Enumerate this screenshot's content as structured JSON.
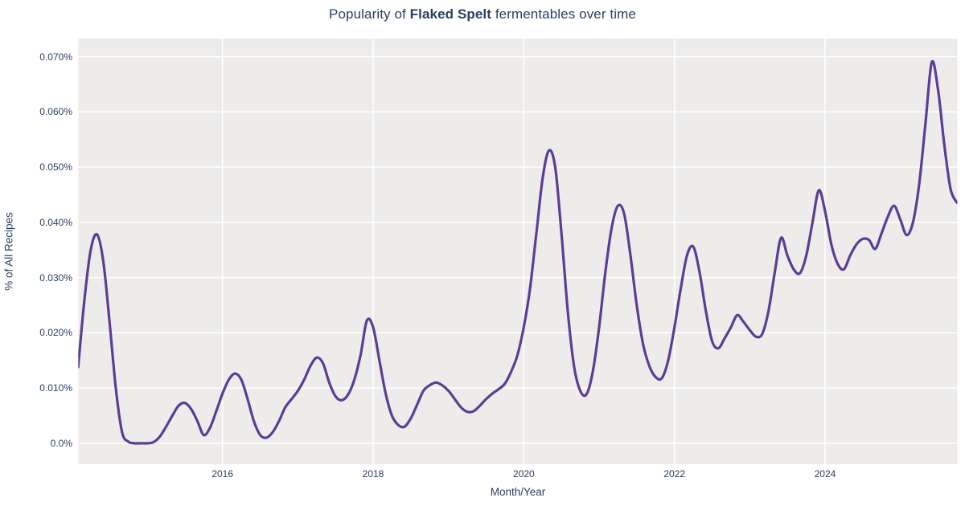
{
  "title": {
    "prefix": "Popularity of ",
    "highlight": "Flaked Spelt",
    "suffix": " fermentables over time"
  },
  "axes": {
    "y_title": "% of All Recipes",
    "x_title": "Month/Year",
    "y_ticks": [
      {
        "label": "0.0%",
        "value": 0.0
      },
      {
        "label": "0.010%",
        "value": 0.01
      },
      {
        "label": "0.020%",
        "value": 0.02
      },
      {
        "label": "0.030%",
        "value": 0.03
      },
      {
        "label": "0.040%",
        "value": 0.04
      },
      {
        "label": "0.050%",
        "value": 0.05
      },
      {
        "label": "0.060%",
        "value": 0.06
      },
      {
        "label": "0.070%",
        "value": 0.07
      }
    ],
    "x_ticks": [
      {
        "label": "2016",
        "year": 2016
      },
      {
        "label": "2018",
        "year": 2018
      },
      {
        "label": "2020",
        "year": 2020
      },
      {
        "label": "2022",
        "year": 2022
      },
      {
        "label": "2024",
        "year": 2024
      }
    ]
  },
  "colors": {
    "line": "#5b3e94",
    "plot_background": "#eeeceb",
    "gridline": "#ffffff",
    "text": "#2a3f5f",
    "page_background": "#ffffff"
  },
  "chart_data": {
    "type": "line",
    "title": "Popularity of Flaked Spelt fermentables over time",
    "xlabel": "Month/Year",
    "ylabel": "% of All Recipes",
    "line_shape": "spline",
    "grid": true,
    "legend_visible": false,
    "y_axis_range_pct": [
      -0.0037,
      0.0733
    ],
    "x_axis_range": [
      "2014-01",
      "2025-10"
    ],
    "y_tick_values_pct": [
      0.0,
      0.01,
      0.02,
      0.03,
      0.04,
      0.05,
      0.06,
      0.07
    ],
    "x_tick_years": [
      2016,
      2018,
      2020,
      2022,
      2024
    ],
    "series": [
      {
        "name": "Flaked Spelt",
        "unit": "% of all recipes",
        "x": [
          "2014-02",
          "2014-03",
          "2014-04",
          "2014-05",
          "2014-06",
          "2014-07",
          "2014-08",
          "2014-09",
          "2014-10",
          "2014-11",
          "2014-12",
          "2015-01",
          "2015-02",
          "2015-03",
          "2015-04",
          "2015-05",
          "2015-06",
          "2015-07",
          "2015-08",
          "2015-09",
          "2015-10",
          "2015-11",
          "2015-12",
          "2016-01",
          "2016-02",
          "2016-03",
          "2016-04",
          "2016-05",
          "2016-06",
          "2016-07",
          "2016-08",
          "2016-09",
          "2016-10",
          "2016-11",
          "2016-12",
          "2017-01",
          "2017-02",
          "2017-03",
          "2017-04",
          "2017-05",
          "2017-06",
          "2017-07",
          "2017-08",
          "2017-09",
          "2017-10",
          "2017-11",
          "2017-12",
          "2018-01",
          "2018-02",
          "2018-03",
          "2018-04",
          "2018-05",
          "2018-06",
          "2018-07",
          "2018-08",
          "2018-09",
          "2018-10",
          "2018-11",
          "2018-12",
          "2019-01",
          "2019-02",
          "2019-03",
          "2019-04",
          "2019-05",
          "2019-06",
          "2019-07",
          "2019-08",
          "2019-09",
          "2019-10",
          "2019-11",
          "2019-12",
          "2020-01",
          "2020-02",
          "2020-03",
          "2020-04",
          "2020-05",
          "2020-06",
          "2020-07",
          "2020-08",
          "2020-09",
          "2020-10",
          "2020-11",
          "2020-12",
          "2021-01",
          "2021-02",
          "2021-03",
          "2021-04",
          "2021-05",
          "2021-06",
          "2021-07",
          "2021-08",
          "2021-09",
          "2021-10",
          "2021-11",
          "2021-12",
          "2022-01",
          "2022-02",
          "2022-03",
          "2022-04",
          "2022-05",
          "2022-06",
          "2022-07",
          "2022-08",
          "2022-09",
          "2022-10",
          "2022-11",
          "2022-12",
          "2023-01",
          "2023-02",
          "2023-03",
          "2023-04",
          "2023-05",
          "2023-06",
          "2023-07",
          "2023-08",
          "2023-09",
          "2023-10",
          "2023-11",
          "2023-12",
          "2024-01",
          "2024-02",
          "2024-03",
          "2024-04",
          "2024-05",
          "2024-06",
          "2024-07",
          "2024-08",
          "2024-09",
          "2024-10",
          "2024-11",
          "2024-12",
          "2025-01",
          "2025-02",
          "2025-03",
          "2025-04",
          "2025-05",
          "2025-06",
          "2025-07",
          "2025-08",
          "2025-09",
          "2025-10"
        ],
        "y_pct": [
          0.0138,
          0.026,
          0.035,
          0.0378,
          0.033,
          0.022,
          0.01,
          0.002,
          0.0003,
          0.0,
          0.0,
          0.0,
          0.0002,
          0.0012,
          0.003,
          0.005,
          0.0068,
          0.0073,
          0.0062,
          0.004,
          0.0015,
          0.0028,
          0.0058,
          0.009,
          0.0115,
          0.0126,
          0.0115,
          0.008,
          0.004,
          0.0015,
          0.001,
          0.002,
          0.004,
          0.0065,
          0.008,
          0.0095,
          0.0115,
          0.014,
          0.0155,
          0.0145,
          0.011,
          0.0085,
          0.0078,
          0.0088,
          0.0115,
          0.016,
          0.0222,
          0.021,
          0.015,
          0.009,
          0.005,
          0.0033,
          0.003,
          0.0045,
          0.007,
          0.0095,
          0.0105,
          0.011,
          0.0105,
          0.0095,
          0.008,
          0.0065,
          0.0057,
          0.0058,
          0.0068,
          0.008,
          0.009,
          0.0098,
          0.0108,
          0.013,
          0.016,
          0.021,
          0.028,
          0.038,
          0.048,
          0.053,
          0.05,
          0.038,
          0.024,
          0.014,
          0.0095,
          0.0089,
          0.013,
          0.021,
          0.031,
          0.039,
          0.043,
          0.0415,
          0.034,
          0.025,
          0.018,
          0.014,
          0.012,
          0.0118,
          0.015,
          0.021,
          0.028,
          0.034,
          0.0356,
          0.031,
          0.024,
          0.0185,
          0.0172,
          0.019,
          0.021,
          0.0232,
          0.022,
          0.0205,
          0.0193,
          0.0198,
          0.024,
          0.031,
          0.0372,
          0.034,
          0.0315,
          0.0308,
          0.034,
          0.04,
          0.0458,
          0.042,
          0.036,
          0.0325,
          0.0315,
          0.034,
          0.036,
          0.037,
          0.0368,
          0.0352,
          0.038,
          0.041,
          0.043,
          0.0405,
          0.0377,
          0.04,
          0.047,
          0.058,
          0.069,
          0.064,
          0.054,
          0.046,
          0.0436
        ]
      }
    ]
  }
}
